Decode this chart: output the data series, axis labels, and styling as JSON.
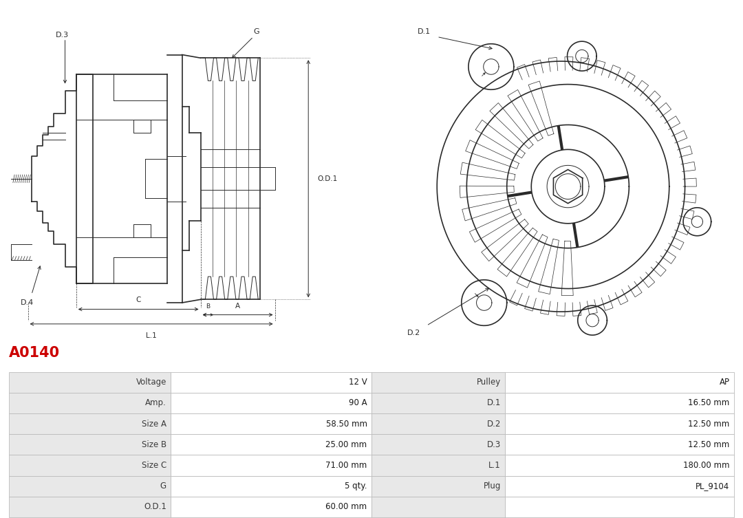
{
  "title": "A0140",
  "title_color": "#cc0000",
  "title_fontsize": 15,
  "table_headers_left": [
    "Voltage",
    "Amp.",
    "Size A",
    "Size B",
    "Size C",
    "G",
    "O.D.1"
  ],
  "table_values_left": [
    "12 V",
    "90 A",
    "58.50 mm",
    "25.00 mm",
    "71.00 mm",
    "5 qty.",
    "60.00 mm"
  ],
  "table_headers_right": [
    "Pulley",
    "D.1",
    "D.2",
    "D.3",
    "L.1",
    "Plug",
    ""
  ],
  "table_values_right": [
    "AP",
    "16.50 mm",
    "12.50 mm",
    "12.50 mm",
    "180.00 mm",
    "PL_9104",
    ""
  ],
  "row_bg_label": "#e8e8e8",
  "row_bg_value": "#ffffff",
  "table_border_color": "#bbbbbb",
  "diagram_line_color": "#2a2a2a",
  "bg_color": "#ffffff"
}
